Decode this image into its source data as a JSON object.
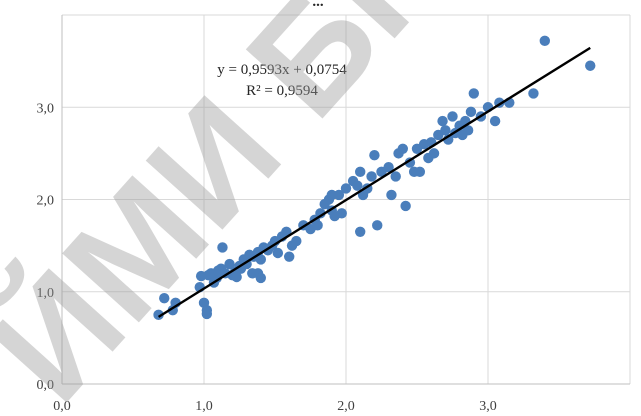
{
  "chart_data": {
    "type": "scatter",
    "title": "...",
    "equation": "y = 0,9593x + 0,0754",
    "r_squared_label": "R² = 0,9594",
    "trendline": {
      "slope": 0.9593,
      "intercept": 0.0754,
      "x_range": [
        0.68,
        3.72
      ],
      "color": "#000000"
    },
    "xlim": [
      0,
      4.0
    ],
    "ylim": [
      0,
      4.0
    ],
    "x_ticks": [
      0,
      1,
      2,
      3
    ],
    "y_ticks": [
      0,
      1,
      2,
      3
    ],
    "x_tick_labels": [
      "0,0",
      "1,0",
      "2,0",
      "3,0"
    ],
    "y_tick_labels": [
      "0,0",
      "1,0",
      "2,0",
      "3,0"
    ],
    "grid": true,
    "legend": "none",
    "point_color": "#4a7ebb",
    "watermark": "ЙМИ БРІ",
    "points": [
      [
        0.68,
        0.75
      ],
      [
        0.72,
        0.93
      ],
      [
        0.78,
        0.8
      ],
      [
        0.8,
        0.88
      ],
      [
        0.97,
        1.05
      ],
      [
        0.98,
        1.17
      ],
      [
        1.0,
        0.88
      ],
      [
        1.02,
        0.8
      ],
      [
        1.02,
        0.76
      ],
      [
        1.03,
        1.18
      ],
      [
        1.05,
        1.2
      ],
      [
        1.07,
        1.1
      ],
      [
        1.09,
        1.15
      ],
      [
        1.1,
        1.23
      ],
      [
        1.12,
        1.25
      ],
      [
        1.13,
        1.48
      ],
      [
        1.15,
        1.2
      ],
      [
        1.18,
        1.3
      ],
      [
        1.2,
        1.18
      ],
      [
        1.22,
        1.22
      ],
      [
        1.23,
        1.16
      ],
      [
        1.25,
        1.28
      ],
      [
        1.26,
        1.25
      ],
      [
        1.28,
        1.35
      ],
      [
        1.3,
        1.3
      ],
      [
        1.32,
        1.4
      ],
      [
        1.34,
        1.2
      ],
      [
        1.35,
        1.38
      ],
      [
        1.38,
        1.2
      ],
      [
        1.38,
        1.43
      ],
      [
        1.4,
        1.15
      ],
      [
        1.4,
        1.35
      ],
      [
        1.42,
        1.48
      ],
      [
        1.45,
        1.45
      ],
      [
        1.48,
        1.5
      ],
      [
        1.5,
        1.55
      ],
      [
        1.52,
        1.42
      ],
      [
        1.55,
        1.6
      ],
      [
        1.58,
        1.65
      ],
      [
        1.6,
        1.38
      ],
      [
        1.62,
        1.5
      ],
      [
        1.65,
        1.55
      ],
      [
        1.7,
        1.72
      ],
      [
        1.75,
        1.68
      ],
      [
        1.78,
        1.78
      ],
      [
        1.8,
        1.72
      ],
      [
        1.82,
        1.85
      ],
      [
        1.85,
        1.95
      ],
      [
        1.88,
        2.0
      ],
      [
        1.9,
        2.05
      ],
      [
        1.9,
        1.88
      ],
      [
        1.92,
        1.82
      ],
      [
        1.95,
        2.05
      ],
      [
        1.97,
        1.85
      ],
      [
        2.0,
        2.12
      ],
      [
        2.05,
        2.2
      ],
      [
        2.08,
        2.15
      ],
      [
        2.1,
        2.3
      ],
      [
        2.1,
        1.65
      ],
      [
        2.12,
        2.05
      ],
      [
        2.15,
        2.12
      ],
      [
        2.18,
        2.25
      ],
      [
        2.2,
        2.48
      ],
      [
        2.22,
        1.72
      ],
      [
        2.25,
        2.3
      ],
      [
        2.3,
        2.35
      ],
      [
        2.32,
        2.05
      ],
      [
        2.35,
        2.25
      ],
      [
        2.37,
        2.5
      ],
      [
        2.4,
        2.55
      ],
      [
        2.42,
        1.93
      ],
      [
        2.45,
        2.4
      ],
      [
        2.48,
        2.3
      ],
      [
        2.5,
        2.55
      ],
      [
        2.52,
        2.3
      ],
      [
        2.55,
        2.6
      ],
      [
        2.58,
        2.45
      ],
      [
        2.6,
        2.62
      ],
      [
        2.62,
        2.5
      ],
      [
        2.65,
        2.7
      ],
      [
        2.68,
        2.85
      ],
      [
        2.7,
        2.75
      ],
      [
        2.72,
        2.65
      ],
      [
        2.75,
        2.9
      ],
      [
        2.77,
        2.72
      ],
      [
        2.8,
        2.8
      ],
      [
        2.82,
        2.7
      ],
      [
        2.84,
        2.85
      ],
      [
        2.86,
        2.75
      ],
      [
        2.88,
        2.95
      ],
      [
        2.9,
        3.15
      ],
      [
        2.95,
        2.9
      ],
      [
        3.0,
        3.0
      ],
      [
        3.05,
        2.85
      ],
      [
        3.08,
        3.05
      ],
      [
        3.15,
        3.05
      ],
      [
        3.32,
        3.15
      ],
      [
        3.4,
        3.72
      ],
      [
        3.72,
        3.45
      ]
    ]
  }
}
